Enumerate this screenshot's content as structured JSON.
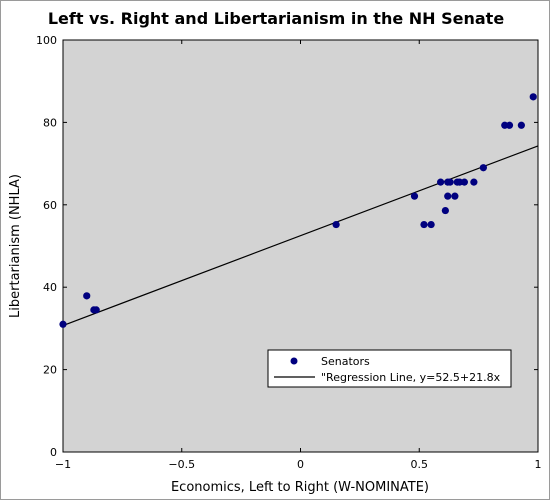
{
  "chart_data": {
    "type": "scatter",
    "title": "Left vs. Right and Libertarianism in the NH Senate",
    "xlabel": "Economics, Left to Right (W-NOMINATE)",
    "ylabel": "Libertarianism (NHLA)",
    "xlim": [
      -1,
      1
    ],
    "ylim": [
      0,
      100
    ],
    "x_ticks": [
      -1,
      -0.5,
      0,
      0.5,
      1
    ],
    "x_tick_labels": [
      "−1",
      "−0.5",
      "0",
      "0.5",
      "1"
    ],
    "y_ticks": [
      0,
      20,
      40,
      60,
      80,
      100
    ],
    "y_tick_labels": [
      "0",
      "20",
      "40",
      "60",
      "80",
      "100"
    ],
    "grid": false,
    "background_color": "#d3d3d3",
    "legend_position": "lower-right",
    "series": [
      {
        "name": "Senators",
        "type": "scatter",
        "color": "#00007f",
        "points": [
          {
            "x": -1.0,
            "y": 31.0
          },
          {
            "x": -0.9,
            "y": 37.9
          },
          {
            "x": -0.87,
            "y": 34.5
          },
          {
            "x": -0.86,
            "y": 34.5
          },
          {
            "x": 0.15,
            "y": 55.2
          },
          {
            "x": 0.48,
            "y": 62.1
          },
          {
            "x": 0.52,
            "y": 55.2
          },
          {
            "x": 0.55,
            "y": 55.2
          },
          {
            "x": 0.59,
            "y": 65.5
          },
          {
            "x": 0.61,
            "y": 58.6
          },
          {
            "x": 0.62,
            "y": 65.5
          },
          {
            "x": 0.62,
            "y": 62.1
          },
          {
            "x": 0.63,
            "y": 65.5
          },
          {
            "x": 0.65,
            "y": 62.1
          },
          {
            "x": 0.66,
            "y": 65.5
          },
          {
            "x": 0.67,
            "y": 65.5
          },
          {
            "x": 0.69,
            "y": 65.5
          },
          {
            "x": 0.73,
            "y": 65.5
          },
          {
            "x": 0.77,
            "y": 69.0
          },
          {
            "x": 0.86,
            "y": 79.3
          },
          {
            "x": 0.88,
            "y": 79.3
          },
          {
            "x": 0.93,
            "y": 79.3
          },
          {
            "x": 0.98,
            "y": 86.2
          }
        ]
      },
      {
        "name": "\"Regression Line, y=52.5+21.8x",
        "type": "line",
        "color": "#000000",
        "intercept": 52.5,
        "slope": 21.8
      }
    ]
  }
}
